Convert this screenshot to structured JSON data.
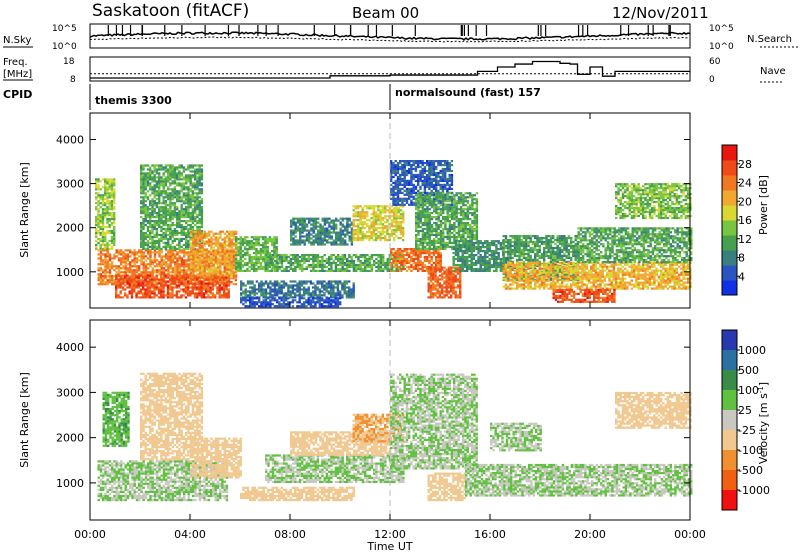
{
  "header": {
    "station": "Saskatoon (fitACF)",
    "beam": "Beam 00",
    "date": "12/Nov/2011"
  },
  "chart_data": [
    {
      "type": "line",
      "name": "noise-panel",
      "left_label": "N.Sky",
      "right_label": "N.Search",
      "left_ticks": [
        "10^5",
        "10^0"
      ],
      "right_ticks": [
        "10^5",
        "10^0"
      ]
    },
    {
      "type": "line",
      "name": "frequency-panel",
      "left_label": "Freq. [MHz]",
      "right_label": "Nave",
      "left_ticks": [
        18,
        8
      ],
      "right_ticks": [
        60,
        0
      ],
      "freq_mhz": [
        11,
        11,
        11
      ],
      "nave_times_h": [
        0,
        9.6,
        12,
        15.5,
        16.3,
        17.0,
        17.7,
        18.8,
        19.2,
        19.5,
        20.0,
        20.5,
        21.0,
        24
      ],
      "nave": [
        0,
        6,
        8,
        18,
        30,
        38,
        45,
        40,
        38,
        10,
        30,
        5,
        18,
        15
      ]
    },
    {
      "type": "table",
      "name": "cpid",
      "label": "CPID",
      "modes": [
        {
          "start_h": 0,
          "label": "themis 3300"
        },
        {
          "start_h": 12,
          "label": "normalsound (fast) 157"
        }
      ]
    },
    {
      "type": "heatmap",
      "name": "power-panel",
      "ylabel": "Slant Range [km]",
      "yticks": [
        1000,
        2000,
        3000,
        4000
      ],
      "ylim": [
        180,
        4600
      ],
      "xlim": [
        0,
        24
      ],
      "colorbar": {
        "label": "Power [dB]",
        "ticks": [
          4,
          8,
          12,
          16,
          20,
          24,
          28
        ],
        "colors": [
          "#0f2fe8",
          "#2a55c0",
          "#3a7f80",
          "#46a050",
          "#78c640",
          "#d8d830",
          "#f0a830",
          "#f07820",
          "#f04a18",
          "#e81810"
        ]
      },
      "echo_regions": [
        {
          "t": [
            0.2,
            1.0
          ],
          "r": [
            1500,
            3100
          ],
          "v": 16
        },
        {
          "t": [
            0.3,
            5.8
          ],
          "r": [
            700,
            1500
          ],
          "v": 24
        },
        {
          "t": [
            1.0,
            5.5
          ],
          "r": [
            400,
            900
          ],
          "v": 27
        },
        {
          "t": [
            2.0,
            4.5
          ],
          "r": [
            1500,
            3400
          ],
          "v": 13
        },
        {
          "t": [
            4.0,
            5.8
          ],
          "r": [
            900,
            1900
          ],
          "v": 22
        },
        {
          "t": [
            5.8,
            7.5
          ],
          "r": [
            1000,
            1800
          ],
          "v": 14
        },
        {
          "t": [
            6.0,
            10.5
          ],
          "r": [
            400,
            800
          ],
          "v": 9
        },
        {
          "t": [
            6.0,
            10.0
          ],
          "r": [
            200,
            400
          ],
          "v": 6
        },
        {
          "t": [
            7.0,
            12.5
          ],
          "r": [
            1000,
            1400
          ],
          "v": 13
        },
        {
          "t": [
            8.0,
            10.5
          ],
          "r": [
            1600,
            2200
          ],
          "v": 10
        },
        {
          "t": [
            10.5,
            12.5
          ],
          "r": [
            1700,
            2500
          ],
          "v": 19
        },
        {
          "t": [
            12.0,
            14.0
          ],
          "r": [
            1000,
            1500
          ],
          "v": 25
        },
        {
          "t": [
            12.0,
            14.5
          ],
          "r": [
            2500,
            3500
          ],
          "v": 7
        },
        {
          "t": [
            13.0,
            15.5
          ],
          "r": [
            1500,
            2800
          ],
          "v": 13
        },
        {
          "t": [
            13.5,
            14.8
          ],
          "r": [
            400,
            1100
          ],
          "v": 26
        },
        {
          "t": [
            14.5,
            16.5
          ],
          "r": [
            1000,
            1700
          ],
          "v": 11
        },
        {
          "t": [
            16.5,
            19.5
          ],
          "r": [
            800,
            1800
          ],
          "v": 12
        },
        {
          "t": [
            16.5,
            24.0
          ],
          "r": [
            600,
            1200
          ],
          "v": 21
        },
        {
          "t": [
            19.5,
            24.0
          ],
          "r": [
            1200,
            2000
          ],
          "v": 13
        },
        {
          "t": [
            21.0,
            24.0
          ],
          "r": [
            2200,
            3000
          ],
          "v": 15
        },
        {
          "t": [
            18.5,
            21.0
          ],
          "r": [
            300,
            600
          ],
          "v": 27
        }
      ]
    },
    {
      "type": "heatmap",
      "name": "velocity-panel",
      "ylabel": "Slant Range [km]",
      "yticks": [
        1000,
        2000,
        3000,
        4000
      ],
      "ylim": [
        180,
        4600
      ],
      "xlim": [
        0,
        24
      ],
      "xticks": [
        "00:00",
        "04:00",
        "08:00",
        "12:00",
        "16:00",
        "20:00",
        "00:00"
      ],
      "xlabel": "Time UT",
      "colorbar": {
        "label": "Velocity [m s^-1]",
        "ticks": [
          1000,
          500,
          100,
          25,
          -25,
          -100,
          -500,
          -1000
        ],
        "colors": [
          "#2838b0",
          "#2a70a0",
          "#3a8a4a",
          "#60c040",
          "#c8c8c0",
          "#f0c890",
          "#f09030",
          "#f06010",
          "#f01010"
        ]
      },
      "echo_regions": [
        {
          "t": [
            0.3,
            5.5
          ],
          "r": [
            600,
            1500
          ],
          "v": 0
        },
        {
          "t": [
            2.0,
            4.5
          ],
          "r": [
            1500,
            3400
          ],
          "v": -150
        },
        {
          "t": [
            0.5,
            1.5
          ],
          "r": [
            1800,
            3000
          ],
          "v": 50
        },
        {
          "t": [
            4.0,
            6.0
          ],
          "r": [
            1100,
            2000
          ],
          "v": -200
        },
        {
          "t": [
            6.0,
            10.5
          ],
          "r": [
            600,
            900
          ],
          "v": -150
        },
        {
          "t": [
            7.0,
            12.5
          ],
          "r": [
            1000,
            1600
          ],
          "v": 0
        },
        {
          "t": [
            8.0,
            12.0
          ],
          "r": [
            1600,
            2100
          ],
          "v": -250
        },
        {
          "t": [
            10.5,
            12.5
          ],
          "r": [
            1900,
            2500
          ],
          "v": -300
        },
        {
          "t": [
            12.0,
            15.5
          ],
          "r": [
            1300,
            3400
          ],
          "v": 0
        },
        {
          "t": [
            13.5,
            15.0
          ],
          "r": [
            600,
            1200
          ],
          "v": -150
        },
        {
          "t": [
            15.0,
            24.0
          ],
          "r": [
            700,
            1400
          ],
          "v": 0
        },
        {
          "t": [
            21.0,
            24.0
          ],
          "r": [
            2200,
            3000
          ],
          "v": -200
        },
        {
          "t": [
            16.0,
            18.0
          ],
          "r": [
            1700,
            2300
          ],
          "v": 0
        }
      ]
    }
  ]
}
